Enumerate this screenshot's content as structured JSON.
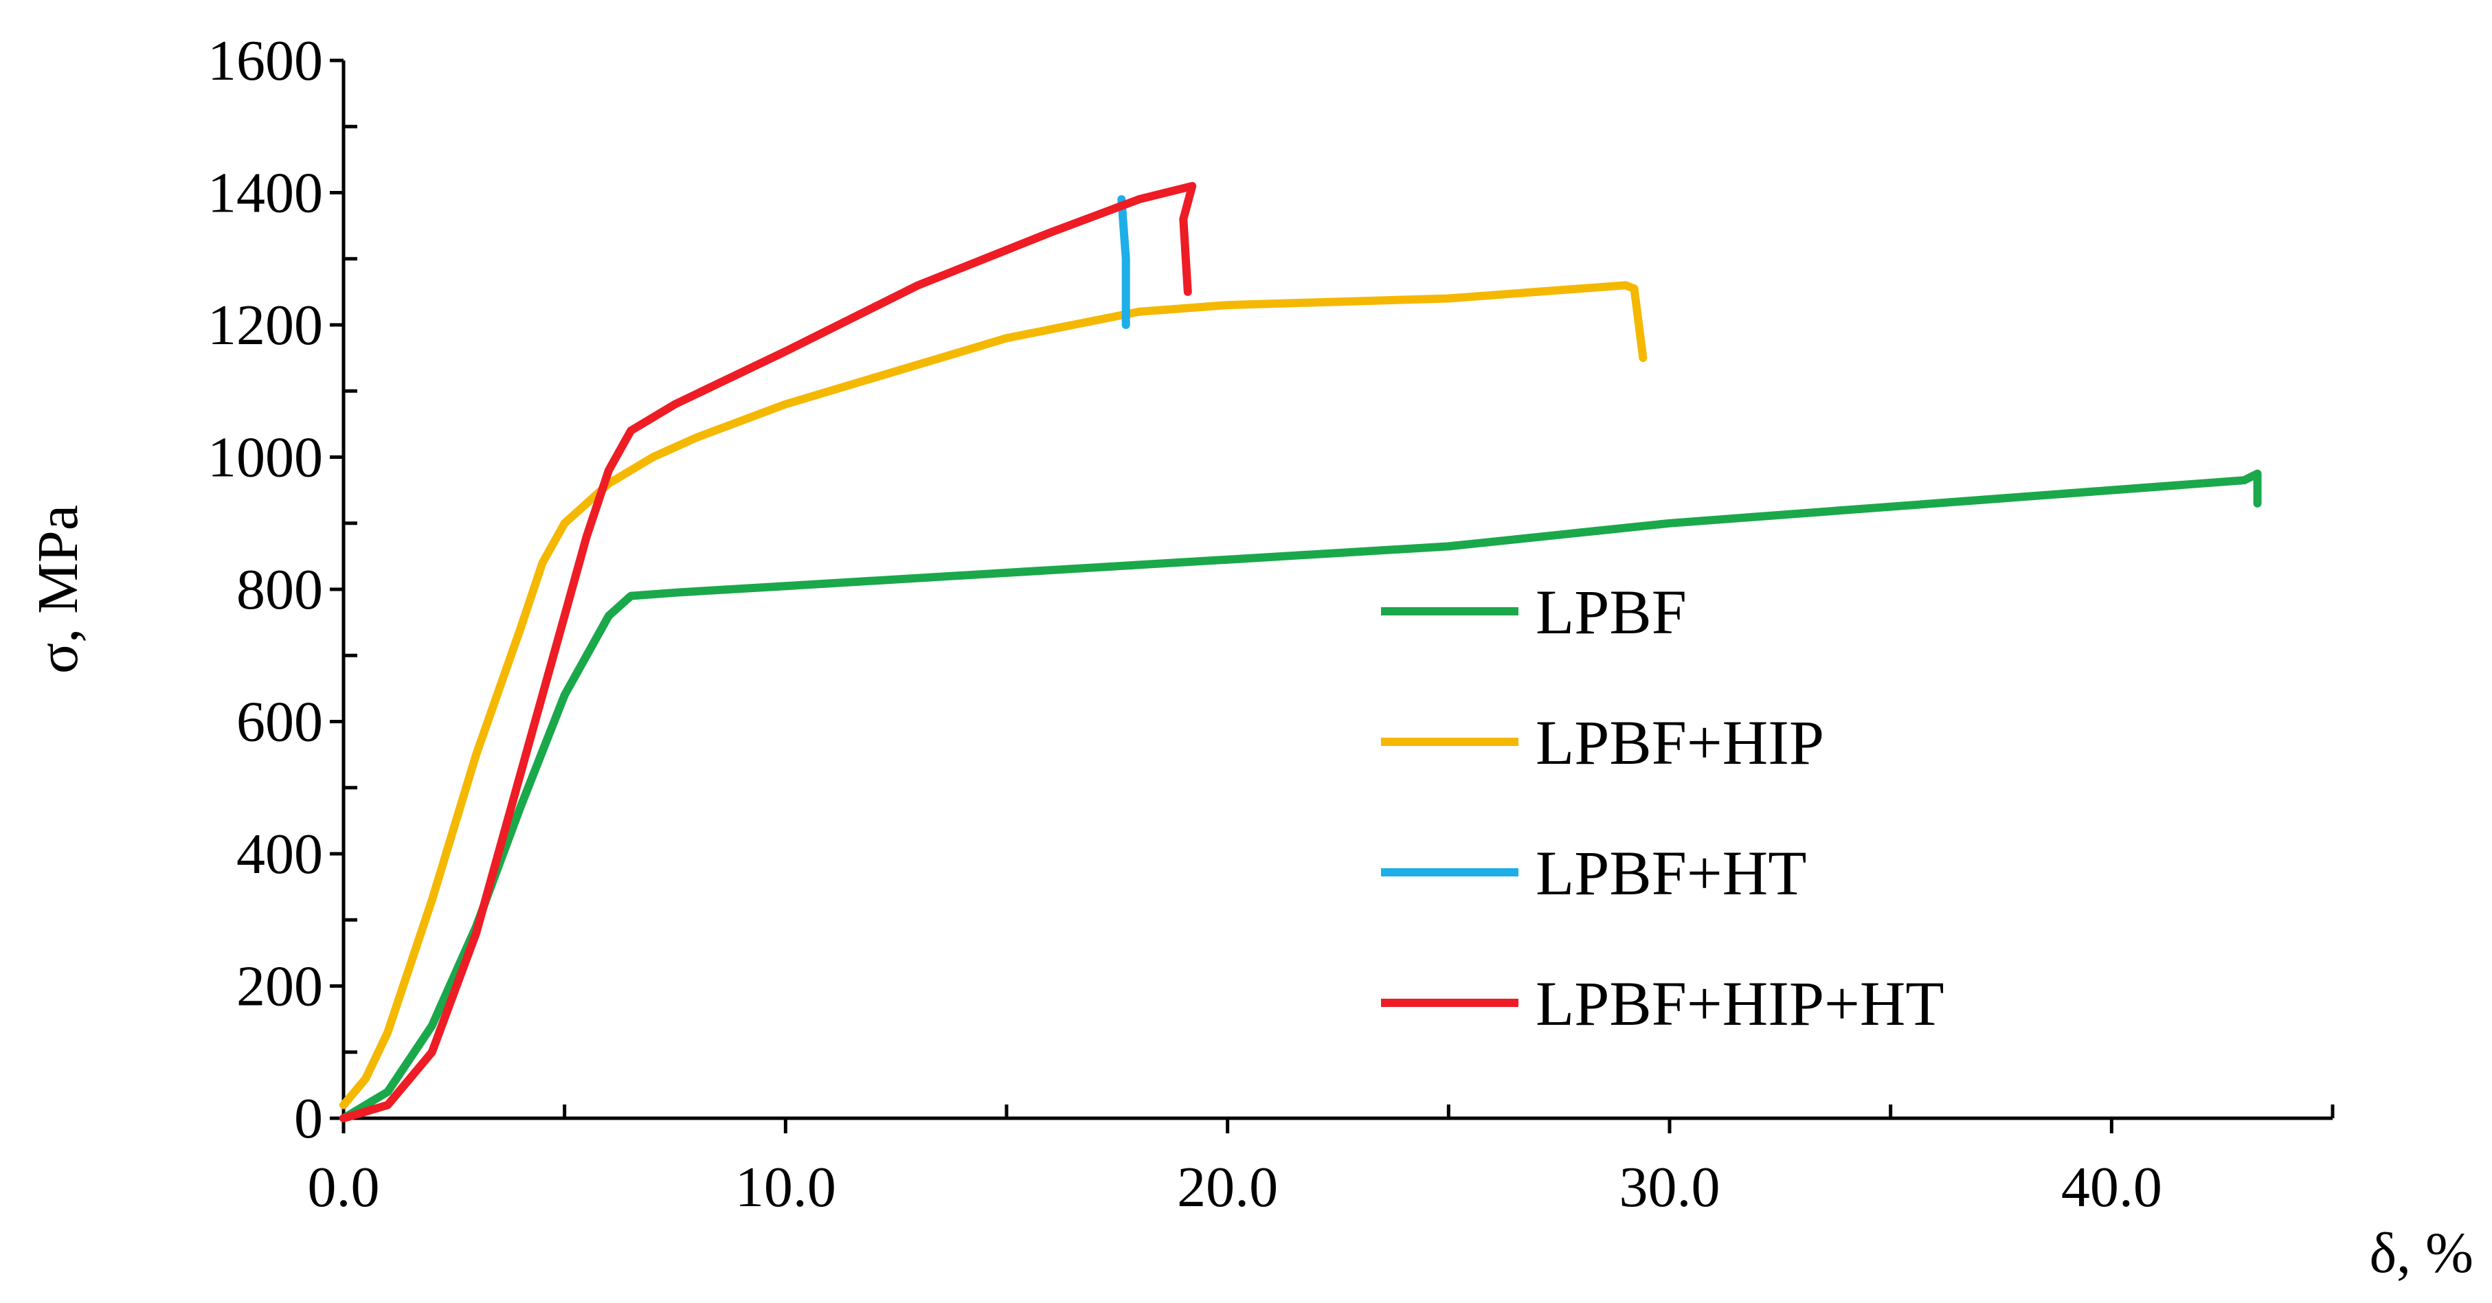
{
  "chart_data": {
    "type": "line",
    "title": "",
    "xlabel": "δ, %",
    "ylabel": "σ, MPa",
    "xlim": [
      0,
      45
    ],
    "ylim": [
      0,
      1600
    ],
    "x_ticks": [
      0,
      10,
      20,
      30,
      40
    ],
    "x_tick_labels": [
      "0.0",
      "10.0",
      "20.0",
      "30.0",
      "40.0"
    ],
    "x_minor_ticks": [
      5,
      15,
      25,
      35,
      45
    ],
    "y_ticks": [
      0,
      200,
      400,
      600,
      800,
      1000,
      1200,
      1400,
      1600
    ],
    "y_tick_labels": [
      "0",
      "200",
      "400",
      "600",
      "800",
      "1000",
      "1200",
      "1400",
      "1600"
    ],
    "y_minor_ticks": [
      100,
      300,
      500,
      700,
      900,
      1100,
      1300,
      1500
    ],
    "grid": false,
    "legend_position": "center-right",
    "series": [
      {
        "name": "LPBF",
        "color": "#1aa84b",
        "points": [
          [
            0,
            0
          ],
          [
            1.0,
            40
          ],
          [
            2.0,
            140
          ],
          [
            3.0,
            290
          ],
          [
            4.0,
            470
          ],
          [
            5.0,
            640
          ],
          [
            6.0,
            760
          ],
          [
            6.5,
            790
          ],
          [
            7.5,
            795
          ],
          [
            10,
            805
          ],
          [
            15,
            825
          ],
          [
            20,
            845
          ],
          [
            25,
            865
          ],
          [
            30,
            900
          ],
          [
            35,
            925
          ],
          [
            40,
            950
          ],
          [
            43,
            965
          ],
          [
            43.3,
            975
          ],
          [
            43.3,
            930
          ]
        ]
      },
      {
        "name": "LPBF+HIP",
        "color": "#f5b800",
        "points": [
          [
            0,
            20
          ],
          [
            0.5,
            60
          ],
          [
            1.0,
            130
          ],
          [
            2.0,
            330
          ],
          [
            3.0,
            550
          ],
          [
            4.0,
            740
          ],
          [
            4.5,
            840
          ],
          [
            5.0,
            900
          ],
          [
            5.5,
            930
          ],
          [
            6.0,
            960
          ],
          [
            7.0,
            1000
          ],
          [
            8.0,
            1030
          ],
          [
            10,
            1080
          ],
          [
            12,
            1120
          ],
          [
            15,
            1180
          ],
          [
            18,
            1220
          ],
          [
            20,
            1230
          ],
          [
            25,
            1240
          ],
          [
            27,
            1250
          ],
          [
            29,
            1260
          ],
          [
            29.2,
            1255
          ],
          [
            29.4,
            1150
          ]
        ]
      },
      {
        "name": "LPBF+HT",
        "color": "#1eaee8",
        "points": [
          [
            17.6,
            1390
          ],
          [
            17.7,
            1300
          ],
          [
            17.7,
            1200
          ]
        ]
      },
      {
        "name": "LPBF+HIP+HT",
        "color": "#ee1c25",
        "points": [
          [
            0,
            0
          ],
          [
            1.0,
            20
          ],
          [
            2.0,
            100
          ],
          [
            3.0,
            280
          ],
          [
            4.0,
            520
          ],
          [
            5.0,
            760
          ],
          [
            5.5,
            880
          ],
          [
            6.0,
            980
          ],
          [
            6.5,
            1040
          ],
          [
            7.5,
            1080
          ],
          [
            10,
            1160
          ],
          [
            13,
            1260
          ],
          [
            16,
            1340
          ],
          [
            18,
            1390
          ],
          [
            19.2,
            1410
          ],
          [
            19.0,
            1360
          ],
          [
            19.1,
            1250
          ]
        ]
      }
    ]
  }
}
